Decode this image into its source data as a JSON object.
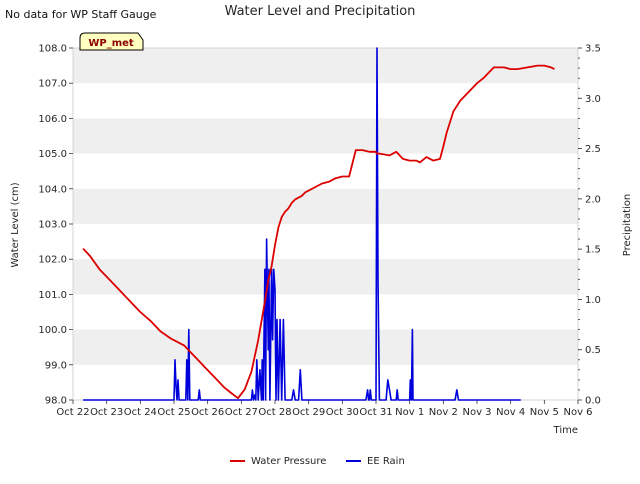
{
  "note": "No data for WP Staff Gauge",
  "badge": "WP_met",
  "colors": {
    "water": "#dd0000",
    "rain": "#0000dd",
    "band": "#efefef"
  },
  "chart_data": {
    "type": "line",
    "title": "Water Level and Precipitation",
    "xlabel": "Time",
    "ylabel": "Water Level (cm)",
    "y2label": "Precipitation",
    "ylim": [
      98.0,
      108.0
    ],
    "y2lim": [
      0.0,
      3.5
    ],
    "xlim": [
      0,
      15
    ],
    "x_ticks": [
      {
        "v": 0,
        "label": "Oct 22"
      },
      {
        "v": 1,
        "label": "Oct 23"
      },
      {
        "v": 2,
        "label": "Oct 24"
      },
      {
        "v": 3,
        "label": "Oct 25"
      },
      {
        "v": 4,
        "label": "Oct 26"
      },
      {
        "v": 5,
        "label": "Oct 27"
      },
      {
        "v": 6,
        "label": "Oct 28"
      },
      {
        "v": 7,
        "label": "Oct 29"
      },
      {
        "v": 8,
        "label": "Oct 30"
      },
      {
        "v": 9,
        "label": "Oct 31"
      },
      {
        "v": 10,
        "label": "Nov 1"
      },
      {
        "v": 11,
        "label": "Nov 2"
      },
      {
        "v": 12,
        "label": "Nov 3"
      },
      {
        "v": 13,
        "label": "Nov 4"
      },
      {
        "v": 14,
        "label": "Nov 5"
      },
      {
        "v": 15,
        "label": "Nov 6"
      }
    ],
    "y_ticks": [
      {
        "v": 98.0,
        "label": "98.0"
      },
      {
        "v": 99.0,
        "label": "99.0"
      },
      {
        "v": 100.0,
        "label": "100.0"
      },
      {
        "v": 101.0,
        "label": "101.0"
      },
      {
        "v": 102.0,
        "label": "102.0"
      },
      {
        "v": 103.0,
        "label": "103.0"
      },
      {
        "v": 104.0,
        "label": "104.0"
      },
      {
        "v": 105.0,
        "label": "105.0"
      },
      {
        "v": 106.0,
        "label": "106.0"
      },
      {
        "v": 107.0,
        "label": "107.0"
      },
      {
        "v": 108.0,
        "label": "108.0"
      }
    ],
    "y2_ticks": [
      {
        "v": 0.0,
        "label": "0.0"
      },
      {
        "v": 0.5,
        "label": "0.5"
      },
      {
        "v": 1.0,
        "label": "1.0"
      },
      {
        "v": 1.5,
        "label": "1.5"
      },
      {
        "v": 2.0,
        "label": "2.0"
      },
      {
        "v": 2.5,
        "label": "2.5"
      },
      {
        "v": 3.0,
        "label": "3.0"
      },
      {
        "v": 3.5,
        "label": "3.5"
      }
    ],
    "legend": {
      "position": "bottom-center"
    },
    "series": [
      {
        "name": "Water Pressure",
        "axis": "left",
        "x": [
          0.3,
          0.5,
          0.8,
          1.0,
          1.2,
          1.5,
          1.8,
          2.0,
          2.3,
          2.6,
          2.9,
          3.1,
          3.3,
          3.5,
          3.7,
          3.9,
          4.1,
          4.3,
          4.5,
          4.7,
          4.9,
          5.1,
          5.3,
          5.5,
          5.7,
          5.8,
          5.9,
          6.0,
          6.1,
          6.2,
          6.3,
          6.4,
          6.5,
          6.6,
          6.7,
          6.8,
          6.9,
          7.0,
          7.2,
          7.4,
          7.6,
          7.8,
          8.0,
          8.2,
          8.4,
          8.6,
          8.8,
          9.0,
          9.02,
          9.1,
          9.4,
          9.6,
          9.8,
          10.0,
          10.2,
          10.3,
          10.5,
          10.7,
          10.9,
          11.0,
          11.1,
          11.2,
          11.3,
          11.5,
          11.8,
          12.0,
          12.2,
          12.5,
          12.8,
          13.0,
          13.2,
          13.5,
          13.8,
          14.0,
          14.2,
          14.3
        ],
        "values": [
          102.3,
          102.1,
          101.7,
          101.5,
          101.3,
          101.0,
          100.7,
          100.5,
          100.25,
          99.95,
          99.75,
          99.65,
          99.55,
          99.35,
          99.15,
          98.95,
          98.75,
          98.55,
          98.35,
          98.2,
          98.05,
          98.3,
          98.8,
          99.7,
          100.8,
          101.4,
          101.8,
          102.4,
          102.9,
          103.2,
          103.35,
          103.45,
          103.6,
          103.7,
          103.75,
          103.8,
          103.9,
          103.95,
          104.05,
          104.15,
          104.2,
          104.3,
          104.35,
          104.35,
          105.1,
          105.1,
          105.05,
          105.05,
          105.0,
          105.0,
          104.95,
          105.05,
          104.85,
          104.8,
          104.8,
          104.75,
          104.9,
          104.8,
          104.85,
          105.2,
          105.6,
          105.9,
          106.2,
          106.5,
          106.8,
          107.0,
          107.15,
          107.45,
          107.45,
          107.4,
          107.4,
          107.45,
          107.5,
          107.5,
          107.45,
          107.4
        ]
      },
      {
        "name": "EE Rain",
        "axis": "right",
        "x": [
          0.3,
          3.0,
          3.03,
          3.06,
          3.09,
          3.12,
          3.15,
          3.35,
          3.38,
          3.41,
          3.44,
          3.47,
          3.72,
          3.75,
          3.78,
          5.3,
          5.33,
          5.36,
          5.4,
          5.43,
          5.46,
          5.5,
          5.55,
          5.6,
          5.62,
          5.65,
          5.7,
          5.72,
          5.75,
          5.8,
          5.82,
          5.85,
          5.9,
          5.93,
          5.96,
          6.0,
          6.03,
          6.06,
          6.1,
          6.15,
          6.2,
          6.25,
          6.3,
          6.35,
          6.5,
          6.55,
          6.6,
          6.7,
          6.75,
          6.8,
          7.1,
          7.2,
          7.3,
          7.4,
          7.5,
          7.6,
          7.7,
          7.8,
          7.9,
          8.0,
          8.1,
          8.15,
          8.2,
          8.3,
          8.35,
          8.4,
          8.7,
          8.75,
          8.78,
          8.8,
          8.83,
          8.86,
          8.9,
          9.0,
          9.03,
          9.06,
          9.1,
          9.2,
          9.3,
          9.35,
          9.4,
          9.45,
          9.6,
          9.63,
          9.66,
          10.0,
          10.02,
          10.05,
          10.08,
          10.1,
          10.2,
          10.3,
          10.4,
          10.6,
          10.8,
          11.0,
          11.2,
          11.35,
          11.4,
          11.45,
          11.6,
          12.0,
          12.5,
          13.0,
          13.3
        ],
        "values": [
          0.0,
          0.0,
          0.4,
          0.15,
          0.0,
          0.2,
          0.0,
          0.0,
          0.4,
          0.0,
          0.7,
          0.0,
          0.0,
          0.1,
          0.0,
          0.0,
          0.1,
          0.0,
          0.05,
          0.0,
          0.4,
          0.0,
          0.3,
          0.0,
          0.4,
          0.0,
          1.3,
          0.0,
          1.6,
          0.5,
          1.3,
          0.0,
          1.3,
          0.6,
          1.3,
          1.1,
          0.0,
          0.8,
          0.0,
          0.8,
          0.0,
          0.8,
          0.0,
          0.0,
          0.0,
          0.1,
          0.0,
          0.0,
          0.3,
          0.0,
          0.0,
          0.0,
          0.0,
          0.0,
          0.0,
          0.0,
          0.0,
          0.0,
          0.0,
          0.0,
          0.0,
          0.0,
          0.0,
          0.0,
          0.0,
          0.0,
          0.0,
          0.1,
          0.0,
          0.0,
          0.1,
          0.0,
          0.0,
          0.0,
          3.5,
          1.2,
          0.0,
          0.0,
          0.0,
          0.2,
          0.1,
          0.0,
          0.0,
          0.1,
          0.0,
          0.0,
          0.2,
          0.0,
          0.7,
          0.0,
          0.0,
          0.0,
          0.0,
          0.0,
          0.0,
          0.0,
          0.0,
          0.0,
          0.1,
          0.0,
          0.0,
          0.0,
          0.0,
          0.0,
          0.0
        ]
      }
    ]
  }
}
